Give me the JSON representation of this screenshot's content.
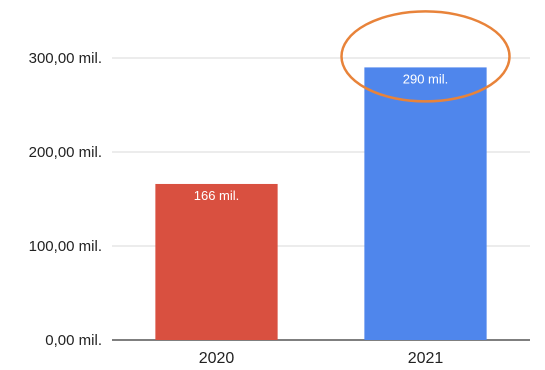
{
  "chart_data": {
    "type": "bar",
    "categories": [
      "2020",
      "2021"
    ],
    "values": [
      166,
      290
    ],
    "data_labels": [
      "166 mil.",
      "290 mil."
    ],
    "bar_colors": [
      "#d95040",
      "#4f86ec"
    ],
    "yticks": [
      0,
      100,
      200,
      300
    ],
    "ytick_labels": [
      "0,00 mil.",
      "100,00 mil.",
      "200,00 mil.",
      "300,00 mil."
    ],
    "ylim": [
      0,
      300
    ],
    "grid": true,
    "title": "",
    "xlabel": "",
    "ylabel": "",
    "annotation": {
      "shape": "ellipse",
      "color": "#e8833a",
      "highlights": "2021"
    }
  }
}
